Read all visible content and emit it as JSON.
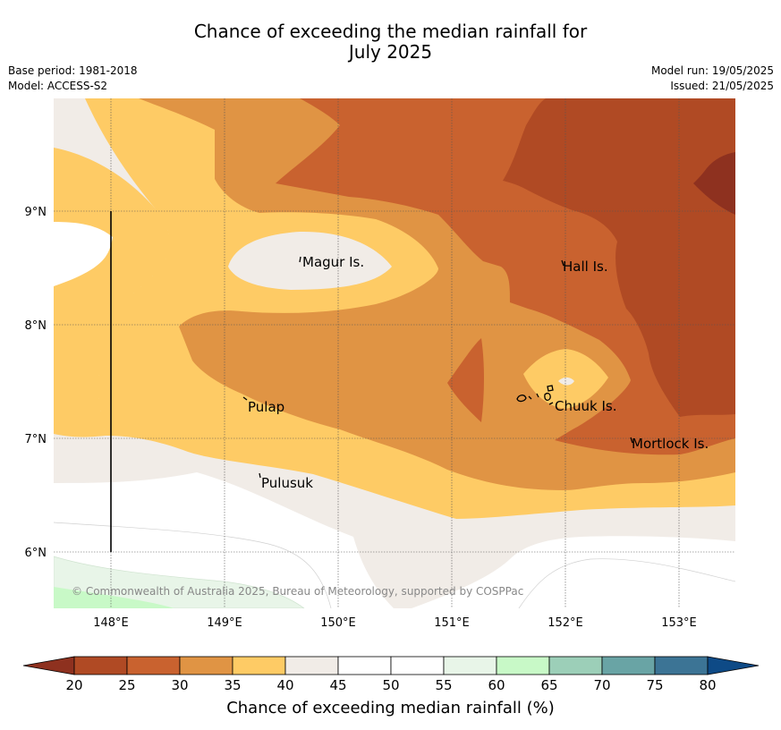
{
  "title": {
    "line1": "Chance of exceeding the median rainfall for",
    "line2": "July 2025"
  },
  "meta": {
    "base_period": "Base period: 1981-2018",
    "model": "Model: ACCESS-S2",
    "model_run": "Model run: 19/05/2025",
    "issued": "Issued: 21/05/2025"
  },
  "map": {
    "lat_ticks": [
      "9°N",
      "8°N",
      "7°N",
      "6°N"
    ],
    "lon_ticks": [
      "148°E",
      "149°E",
      "150°E",
      "151°E",
      "152°E",
      "153°E"
    ],
    "places": {
      "magur": "Magur Is.",
      "hall": "Hall Is.",
      "pulap": "Pulap",
      "chuuk": "Chuuk Is.",
      "mortlock": "Mortlock Is.",
      "pulusuk": "Pulusuk"
    },
    "copyright": "© Commonwealth of Australia 2025, Bureau of Meteorology, supported by COSPPac"
  },
  "colorbar": {
    "label": "Chance of exceeding median rainfall (%)",
    "ticks": [
      "20",
      "25",
      "30",
      "35",
      "40",
      "45",
      "50",
      "55",
      "60",
      "65",
      "70",
      "75",
      "80"
    ],
    "colors": [
      "#b04a24",
      "#c9622f",
      "#e09444",
      "#fecb65",
      "#f1ece7",
      "#ffffff",
      "#ffffff",
      "#e8f5e8",
      "#c8f9c7",
      "#9ccfb8",
      "#69a4a5",
      "#3c7495"
    ],
    "under_color": "#8e311f",
    "over_color": "#0e4a86"
  }
}
